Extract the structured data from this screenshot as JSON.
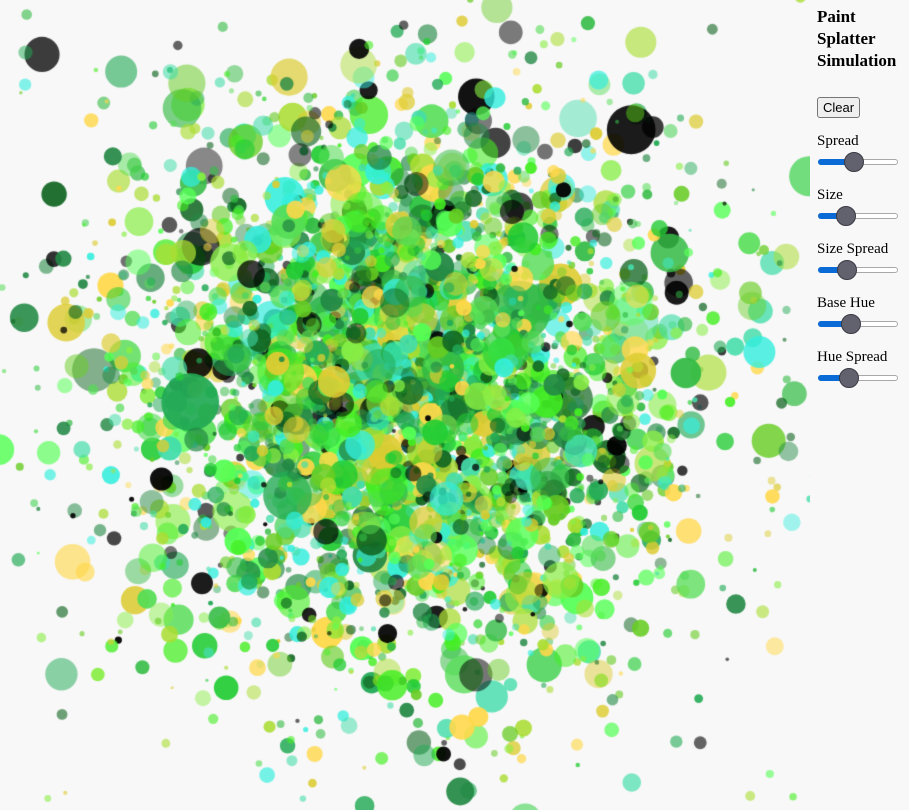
{
  "title": "Paint Splatter Simulation",
  "clear_label": "Clear",
  "controls": [
    {
      "id": "spread",
      "label": "Spread",
      "value": 0.43
    },
    {
      "id": "size",
      "label": "Size",
      "value": 0.3
    },
    {
      "id": "size-spread",
      "label": "Size Spread",
      "value": 0.33
    },
    {
      "id": "base-hue",
      "label": "Base Hue",
      "value": 0.38
    },
    {
      "id": "hue-spread",
      "label": "Hue Spread",
      "value": 0.35
    }
  ],
  "colors": {
    "background": "#f8f8f8",
    "slider_fill": "#0b6bd6",
    "slider_thumb": "#62626f",
    "paint_palette": [
      "#22cc33",
      "#44ee22",
      "#55dd55",
      "#33bb44",
      "#66cc22",
      "#88ee44",
      "#22aa55",
      "#44ddaa",
      "#33eedd",
      "#aadd33",
      "#ddcc33",
      "#228844",
      "#116622",
      "#000000",
      "#55ff55",
      "#ffd84a"
    ]
  }
}
